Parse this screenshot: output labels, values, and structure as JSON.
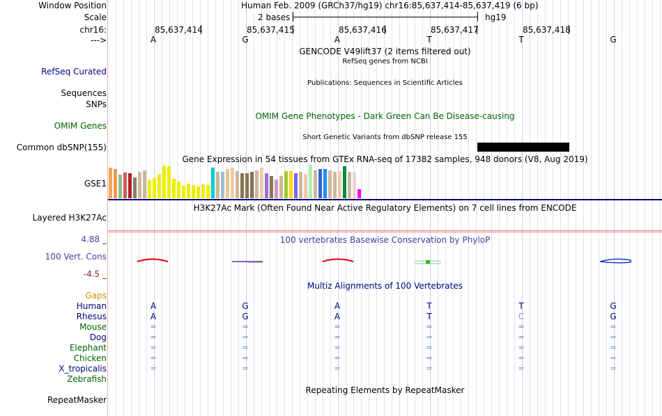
{
  "header": {
    "window_position_label": "Window Position",
    "window_position_value": "Human Feb. 2009 (GRCh37/hg19)   chr16:85,637,414-85,637,419 (6 bp)",
    "scale_label": "Scale",
    "scale_value": "2 bases",
    "scale_assembly": "hg19",
    "chrom_label": "chr16:",
    "strand_label": "--->",
    "positions": [
      "85,637,414",
      "85,637,415",
      "85,637,416",
      "85,637,417",
      "85,637,418"
    ],
    "bases": [
      "A",
      "G",
      "A",
      "T",
      "T",
      "G"
    ]
  },
  "tracks": {
    "gencode_title": "GENCODE V49lift37 (2 items filtered out)",
    "refseq_label": "RefSeq Curated",
    "refseq_title": "RefSeq genes from NCBI",
    "publications_title": "Publications: Sequences in Scientific Articles",
    "sequences_label": "Sequences",
    "snps_label": "SNPs",
    "omim_title": "OMIM Gene Phenotypes - Dark Green Can Be Disease-causing",
    "omim_label": "OMIM Genes",
    "dbsnp_title": "Short Genetic Variants from dbSNP release 155",
    "dbsnp_label": "Common dbSNP(155)",
    "gtex_title": "Gene Expression in 54 tissues from GTEx RNA-seq of 17382 samples, 948 donors (V8, Aug 2019)",
    "gtex_label": "GSE1",
    "h3k27ac_title": "H3K27Ac Mark (Often Found Near Active Regulatory Elements) on 7 cell lines from ENCODE",
    "h3k27ac_label": "Layered H3K27Ac",
    "cons_max": "4.88 _",
    "cons_title": "100 vertebrates Basewise Conservation by PhyloP",
    "cons_label": "100 Vert. Cons",
    "cons_min": "-4.5 _",
    "multiz_title": "Multiz Alignments of 100 Vertebrates",
    "gaps_label": "Gaps",
    "species": [
      {
        "name": "Human",
        "bases": [
          "A",
          "G",
          "A",
          "T",
          "T",
          "G"
        ]
      },
      {
        "name": "Rhesus",
        "bases": [
          "A",
          "G",
          "A",
          "T",
          "C",
          "G"
        ]
      },
      {
        "name": "Mouse",
        "bases": [
          "=",
          "=",
          "=",
          "=",
          "=",
          "="
        ]
      },
      {
        "name": "Dog",
        "bases": [
          "=",
          "=",
          "=",
          "=",
          "=",
          "="
        ]
      },
      {
        "name": "Elephant",
        "bases": [
          "=",
          "=",
          "=",
          "=",
          "=",
          "="
        ]
      },
      {
        "name": "Chicken",
        "bases": [
          "=",
          "=",
          "=",
          "=",
          "=",
          "="
        ]
      },
      {
        "name": "X_tropicalis",
        "bases": [
          "=",
          "=",
          "=",
          "=",
          "=",
          "="
        ]
      },
      {
        "name": "Zebrafish",
        "bases": [
          "",
          "",
          "",
          "",
          "",
          ""
        ]
      }
    ],
    "repeat_title": "Repeating Elements by RepeatMasker",
    "repeat_label": "RepeatMasker"
  },
  "colors": {
    "navy": "#000080",
    "dark_green": "#006400",
    "gaps": "#d38c00",
    "cons": "#4040a0",
    "cons_min": "#8b1a1a",
    "divider": "#f2b2b2"
  },
  "gtex_bars": [
    {
      "level": 0.92,
      "color": "#f4a460"
    },
    {
      "level": 0.88,
      "color": "#ee9a49"
    },
    {
      "level": 0.7,
      "color": "#8fbc8f"
    },
    {
      "level": 0.78,
      "color": "#cd5c5c"
    },
    {
      "level": 0.75,
      "color": "#b22222"
    },
    {
      "level": 0.62,
      "color": "#8b7d6b"
    },
    {
      "level": 0.8,
      "color": "#cdb79e"
    },
    {
      "level": 0.84,
      "color": "#cdb79e"
    },
    {
      "level": 0.55,
      "color": "#eeee00"
    },
    {
      "level": 0.6,
      "color": "#eeee00"
    },
    {
      "level": 0.72,
      "color": "#eeee00"
    },
    {
      "level": 0.98,
      "color": "#eeee00"
    },
    {
      "level": 0.96,
      "color": "#eeee00"
    },
    {
      "level": 0.58,
      "color": "#eeee00"
    },
    {
      "level": 0.5,
      "color": "#eeee00"
    },
    {
      "level": 0.38,
      "color": "#eeee00"
    },
    {
      "level": 0.44,
      "color": "#eeee00"
    },
    {
      "level": 0.4,
      "color": "#eeee00"
    },
    {
      "level": 0.36,
      "color": "#eeee00"
    },
    {
      "level": 0.42,
      "color": "#eeee00"
    },
    {
      "level": 0.4,
      "color": "#eeee00"
    },
    {
      "level": 0.92,
      "color": "#00ced1"
    },
    {
      "level": 0.8,
      "color": "#cdb79e"
    },
    {
      "level": 0.8,
      "color": "#9ac0cd"
    },
    {
      "level": 0.88,
      "color": "#eec591"
    },
    {
      "level": 0.92,
      "color": "#eecbad"
    },
    {
      "level": 0.82,
      "color": "#cdb79e"
    },
    {
      "level": 0.76,
      "color": "#8b7355"
    },
    {
      "level": 0.76,
      "color": "#8b7355"
    },
    {
      "level": 0.8,
      "color": "#8b7355"
    },
    {
      "level": 0.84,
      "color": "#cdb79e"
    },
    {
      "level": 0.92,
      "color": "#eecbad"
    },
    {
      "level": 0.74,
      "color": "#9370db"
    },
    {
      "level": 0.66,
      "color": "#8b7355"
    },
    {
      "level": 0.56,
      "color": "#cd96cd"
    },
    {
      "level": 0.66,
      "color": "#cdb79e"
    },
    {
      "level": 0.82,
      "color": "#9acd32"
    },
    {
      "level": 0.82,
      "color": "#ffd700"
    },
    {
      "level": 0.74,
      "color": "#7a67ee"
    },
    {
      "level": 0.8,
      "color": "#cdb79e"
    },
    {
      "level": 0.72,
      "color": "#eecbad"
    },
    {
      "level": 1.0,
      "color": "#b4eeb4"
    },
    {
      "level": 0.84,
      "color": "#cdb79e"
    },
    {
      "level": 0.88,
      "color": "#3a5fcd"
    },
    {
      "level": 0.88,
      "color": "#1e90ff"
    },
    {
      "level": 0.84,
      "color": "#cdb79e"
    },
    {
      "level": 0.8,
      "color": "#cdb79e"
    },
    {
      "level": 0.82,
      "color": "#eecbad"
    },
    {
      "level": 0.96,
      "color": "#008b45"
    },
    {
      "level": 0.8,
      "color": "#cdb79e"
    },
    {
      "level": 0.8,
      "color": "#eed5d2"
    },
    {
      "level": 0.28,
      "color": "#ff00ff"
    }
  ]
}
